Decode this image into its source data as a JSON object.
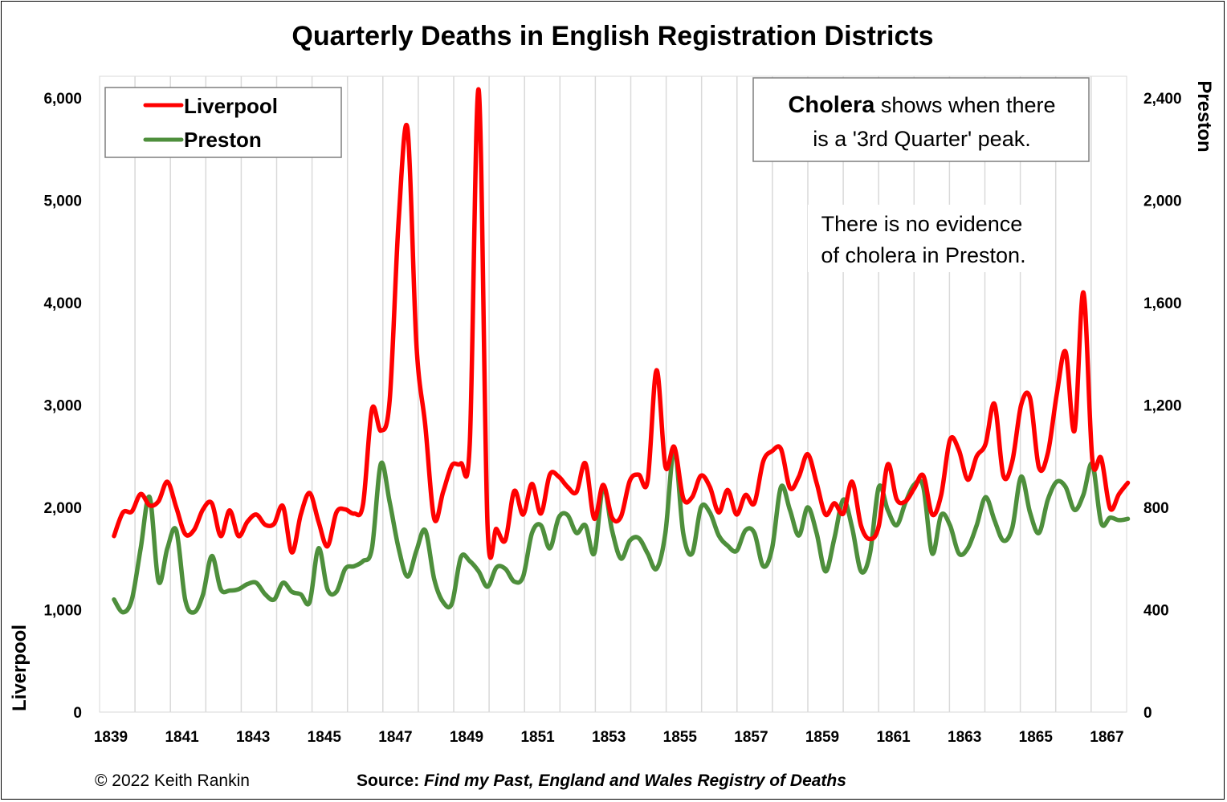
{
  "chart_data": {
    "type": "line",
    "title": "Quarterly Deaths in English Registration Districts",
    "ylabel_left": "Liverpool",
    "ylabel_right": "Preston",
    "ylim_left": [
      0,
      6000
    ],
    "ylim_right": [
      0,
      2400
    ],
    "yticks_left": [
      "0",
      "1,000",
      "2,000",
      "3,000",
      "4,000",
      "5,000",
      "6,000"
    ],
    "yticks_right": [
      "0",
      "400",
      "800",
      "1,200",
      "1,600",
      "2,000",
      "2,400"
    ],
    "xticks": [
      "1839",
      "1841",
      "1843",
      "1845",
      "1847",
      "1849",
      "1851",
      "1853",
      "1855",
      "1857",
      "1859",
      "1861",
      "1863",
      "1865",
      "1867"
    ],
    "grid": "vertical",
    "legend_position": "top-left",
    "x_start": 1839.0,
    "x_step_quarter": 0.25,
    "series": [
      {
        "name": "Liverpool",
        "axis": "left",
        "color": "#ff0000",
        "values": [
          1720,
          1950,
          1960,
          2130,
          2020,
          2060,
          2250,
          2000,
          1740,
          1780,
          1980,
          2040,
          1720,
          1970,
          1720,
          1860,
          1930,
          1830,
          1840,
          2010,
          1560,
          1930,
          2140,
          1860,
          1620,
          1950,
          1980,
          1940,
          2030,
          2960,
          2750,
          3050,
          4800,
          5700,
          3600,
          2800,
          1890,
          2150,
          2410,
          2430,
          2620,
          6080,
          1830,
          1790,
          1680,
          2160,
          1930,
          2230,
          1940,
          2320,
          2300,
          2200,
          2150,
          2430,
          1890,
          2220,
          1900,
          1910,
          2260,
          2320,
          2260,
          3340,
          2400,
          2590,
          2090,
          2100,
          2310,
          2200,
          1950,
          2170,
          1930,
          2120,
          2040,
          2450,
          2550,
          2570,
          2190,
          2300,
          2520,
          2240,
          1930,
          2040,
          1940,
          2250,
          1820,
          1690,
          1820,
          2420,
          2080,
          2060,
          2190,
          2310,
          1930,
          2120,
          2660,
          2560,
          2270,
          2500,
          2620,
          3010,
          2310,
          2450,
          3000,
          3070,
          2390,
          2530,
          3100,
          3520,
          2750,
          4100,
          2470,
          2480,
          1990,
          2130,
          2240
        ]
      },
      {
        "name": "Preston",
        "axis": "right",
        "color": "#4e8f3c",
        "values": [
          440,
          390,
          440,
          640,
          840,
          510,
          640,
          710,
          440,
          390,
          460,
          610,
          480,
          475,
          480,
          500,
          505,
          460,
          440,
          505,
          470,
          460,
          430,
          640,
          480,
          470,
          560,
          570,
          590,
          640,
          970,
          820,
          640,
          530,
          630,
          710,
          520,
          430,
          425,
          605,
          590,
          550,
          490,
          565,
          560,
          510,
          530,
          700,
          730,
          640,
          760,
          770,
          700,
          730,
          620,
          880,
          710,
          600,
          670,
          680,
          620,
          560,
          700,
          1030,
          700,
          620,
          800,
          780,
          690,
          650,
          630,
          710,
          700,
          570,
          640,
          880,
          790,
          690,
          800,
          700,
          550,
          680,
          830,
          720,
          550,
          620,
          880,
          790,
          730,
          820,
          890,
          880,
          620,
          770,
          730,
          620,
          640,
          730,
          840,
          750,
          670,
          720,
          920,
          780,
          700,
          830,
          900,
          880,
          790,
          850,
          970,
          740,
          760,
          750,
          755
        ]
      }
    ],
    "legend": [
      {
        "label": "Liverpool",
        "color": "#ff0000"
      },
      {
        "label": "Preston",
        "color": "#4e8f3c"
      }
    ],
    "annotations": {
      "box_bold": "Cholera",
      "box_line1_rest": " shows when there",
      "box_line2": "is a '3rd Quarter' peak.",
      "note_line1": "There is no evidence",
      "note_line2": "of cholera in Preston."
    }
  },
  "footer": {
    "copyright": "© 2022 Keith Rankin",
    "source_label": "Source: ",
    "source_text": "Find my Past, England and Wales Registry of Deaths"
  }
}
